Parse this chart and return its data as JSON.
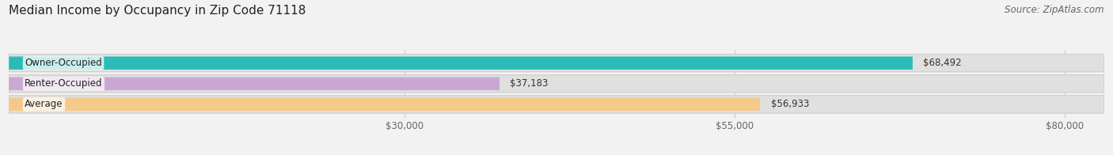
{
  "title": "Median Income by Occupancy in Zip Code 71118",
  "source": "Source: ZipAtlas.com",
  "categories": [
    "Owner-Occupied",
    "Renter-Occupied",
    "Average"
  ],
  "values": [
    68492,
    37183,
    56933
  ],
  "bar_colors": [
    "#2bbcb8",
    "#c9a8d4",
    "#f5c98a"
  ],
  "value_labels": [
    "$68,492",
    "$37,183",
    "$56,933"
  ],
  "xlim": [
    0,
    83000
  ],
  "xticks": [
    30000,
    55000,
    80000
  ],
  "xtick_labels": [
    "$30,000",
    "$55,000",
    "$80,000"
  ],
  "bg_color": "#f2f2f2",
  "bar_bg_color": "#e0e0e0",
  "title_fontsize": 11,
  "source_fontsize": 8.5,
  "label_fontsize": 8.5,
  "tick_fontsize": 8.5,
  "bar_height": 0.62,
  "label_color": "#666666",
  "title_color": "#222222"
}
